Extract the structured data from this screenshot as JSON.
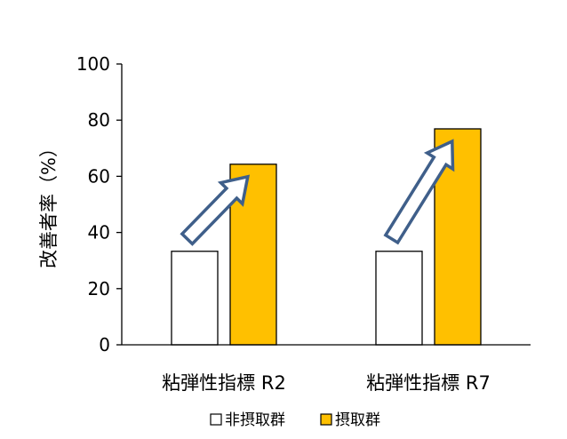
{
  "chart_data": {
    "type": "bar",
    "title": "",
    "xlabel": "",
    "ylabel": "改善者率（%）",
    "ylim": [
      0,
      100
    ],
    "yticks": [
      0,
      20,
      40,
      60,
      80,
      100
    ],
    "categories": [
      "粘弾性指標 R2",
      "粘弾性指標 R7"
    ],
    "series": [
      {
        "name": "非摂取群",
        "values": [
          33.3,
          33.3
        ],
        "color": "#FFFFFF",
        "stroke": "#000000"
      },
      {
        "name": "摂取群",
        "values": [
          64.3,
          76.9
        ],
        "color": "#FFC000",
        "stroke": "#000000"
      }
    ],
    "annotations": [
      {
        "type": "arrow",
        "from_series": 0,
        "to_series": 1,
        "category": 0,
        "color": "#3F5F8A"
      },
      {
        "type": "arrow",
        "from_series": 0,
        "to_series": 1,
        "category": 1,
        "color": "#3F5F8A"
      }
    ],
    "legend": {
      "placement": "bottom"
    },
    "grid": false
  }
}
